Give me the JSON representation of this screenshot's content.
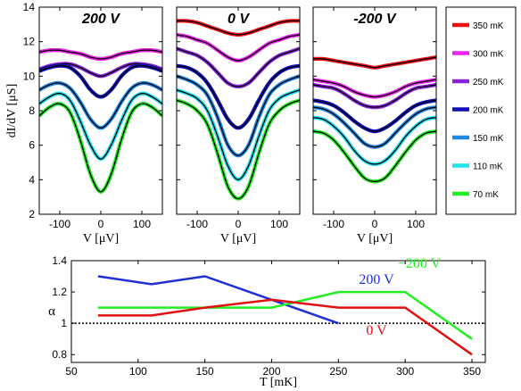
{
  "chart_data": [
    {
      "type": "line",
      "title": "200 V",
      "xlabel": "V [μV]",
      "ylabel": "dI/dV [μS]",
      "xlim": [
        -150,
        150
      ],
      "ylim": [
        2,
        14
      ],
      "xticks": [
        -100,
        0,
        100
      ],
      "yticks": [
        2,
        4,
        6,
        8,
        10,
        12,
        14
      ],
      "x": [
        -150,
        -125,
        -100,
        -75,
        -50,
        -25,
        0,
        25,
        50,
        75,
        100,
        125,
        150
      ],
      "series": [
        {
          "name": "350 mK",
          "values": [
            11.4,
            11.5,
            11.5,
            11.4,
            11.3,
            11.1,
            11.0,
            11.1,
            11.3,
            11.4,
            11.5,
            11.5,
            11.4
          ]
        },
        {
          "name": "300 mK",
          "values": [
            11.4,
            11.5,
            11.5,
            11.4,
            11.3,
            11.1,
            11.0,
            11.1,
            11.3,
            11.4,
            11.5,
            11.5,
            11.4
          ]
        },
        {
          "name": "250 mK",
          "values": [
            10.4,
            10.6,
            10.7,
            10.7,
            10.5,
            10.2,
            10.0,
            10.2,
            10.5,
            10.7,
            10.7,
            10.6,
            10.4
          ]
        },
        {
          "name": "200 mK",
          "values": [
            10.3,
            10.5,
            10.6,
            10.5,
            10.0,
            9.2,
            8.8,
            9.2,
            10.0,
            10.5,
            10.6,
            10.5,
            10.3
          ]
        },
        {
          "name": "150 mK",
          "values": [
            9.2,
            9.5,
            9.6,
            9.3,
            8.5,
            7.5,
            7.0,
            7.5,
            8.5,
            9.3,
            9.6,
            9.5,
            9.2
          ]
        },
        {
          "name": "110 mK",
          "values": [
            8.4,
            8.8,
            9.0,
            8.6,
            7.4,
            6.0,
            5.2,
            6.0,
            7.4,
            8.6,
            9.0,
            8.8,
            8.4
          ]
        },
        {
          "name": "70 mK",
          "values": [
            7.7,
            8.2,
            8.4,
            7.9,
            6.3,
            4.3,
            3.3,
            4.3,
            6.3,
            7.9,
            8.4,
            8.2,
            7.7
          ]
        }
      ]
    },
    {
      "type": "line",
      "title": "0 V",
      "xlabel": "V [μV]",
      "ylabel": "",
      "xlim": [
        -150,
        150
      ],
      "ylim": [
        2,
        14
      ],
      "xticks": [
        -100,
        0,
        100
      ],
      "yticks": [
        2,
        4,
        6,
        8,
        10,
        12,
        14
      ],
      "x": [
        -150,
        -125,
        -100,
        -75,
        -50,
        -25,
        0,
        25,
        50,
        75,
        100,
        125,
        150
      ],
      "series": [
        {
          "name": "350 mK",
          "values": [
            13.2,
            13.2,
            13.1,
            12.9,
            12.7,
            12.5,
            12.4,
            12.5,
            12.7,
            12.9,
            13.1,
            13.2,
            13.2
          ]
        },
        {
          "name": "300 mK",
          "values": [
            12.4,
            12.3,
            12.1,
            11.9,
            11.5,
            11.1,
            10.9,
            11.1,
            11.5,
            11.9,
            12.1,
            12.3,
            12.4
          ]
        },
        {
          "name": "250 mK",
          "values": [
            11.6,
            11.4,
            11.2,
            10.8,
            10.2,
            9.6,
            9.4,
            9.6,
            10.2,
            10.8,
            11.2,
            11.4,
            11.6
          ]
        },
        {
          "name": "200 mK",
          "values": [
            10.6,
            10.5,
            10.2,
            9.6,
            8.6,
            7.5,
            7.0,
            7.5,
            8.6,
            9.6,
            10.2,
            10.5,
            10.6
          ]
        },
        {
          "name": "150 mK",
          "values": [
            10.0,
            9.8,
            9.5,
            8.9,
            7.6,
            6.0,
            5.4,
            6.0,
            7.6,
            8.9,
            9.5,
            9.8,
            10.0
          ]
        },
        {
          "name": "110 mK",
          "values": [
            9.2,
            9.0,
            8.7,
            8.0,
            6.5,
            4.8,
            4.0,
            4.8,
            6.5,
            8.0,
            8.7,
            9.0,
            9.2
          ]
        },
        {
          "name": "70 mK",
          "values": [
            8.6,
            8.4,
            8.0,
            7.2,
            5.5,
            3.6,
            2.9,
            3.6,
            5.5,
            7.2,
            8.0,
            8.4,
            8.6
          ]
        }
      ]
    },
    {
      "type": "line",
      "title": "-200 V",
      "xlabel": "V [μV]",
      "ylabel": "",
      "xlim": [
        -150,
        150
      ],
      "ylim": [
        2,
        14
      ],
      "xticks": [
        -100,
        0,
        100
      ],
      "yticks": [
        2,
        4,
        6,
        8,
        10,
        12,
        14
      ],
      "x": [
        -150,
        -125,
        -100,
        -75,
        -50,
        -25,
        0,
        25,
        50,
        75,
        100,
        125,
        150
      ],
      "series": [
        {
          "name": "350 mK",
          "values": [
            11.0,
            11.0,
            10.9,
            10.8,
            10.7,
            10.6,
            10.5,
            10.6,
            10.7,
            10.8,
            10.9,
            11.0,
            11.1
          ]
        },
        {
          "name": "300 mK",
          "values": [
            9.8,
            9.7,
            9.6,
            9.4,
            9.1,
            8.9,
            8.8,
            8.9,
            9.1,
            9.4,
            9.6,
            9.7,
            9.8
          ]
        },
        {
          "name": "250 mK",
          "values": [
            9.5,
            9.4,
            9.3,
            9.0,
            8.6,
            8.3,
            8.2,
            8.3,
            8.6,
            9.0,
            9.3,
            9.4,
            9.5
          ]
        },
        {
          "name": "200 mK",
          "values": [
            8.6,
            8.5,
            8.3,
            7.9,
            7.4,
            7.0,
            6.8,
            7.0,
            7.4,
            7.9,
            8.3,
            8.5,
            8.6
          ]
        },
        {
          "name": "150 mK",
          "values": [
            8.2,
            8.1,
            7.8,
            7.3,
            6.7,
            6.1,
            5.9,
            6.1,
            6.7,
            7.3,
            7.8,
            8.1,
            8.2
          ]
        },
        {
          "name": "110 mK",
          "values": [
            7.6,
            7.5,
            7.1,
            6.5,
            5.7,
            5.1,
            4.9,
            5.1,
            5.7,
            6.5,
            7.1,
            7.5,
            7.6
          ]
        },
        {
          "name": "70 mK",
          "values": [
            6.8,
            6.7,
            6.3,
            5.6,
            4.8,
            4.1,
            3.9,
            4.1,
            4.8,
            5.6,
            6.3,
            6.7,
            6.8
          ]
        }
      ]
    },
    {
      "type": "line",
      "title": "",
      "xlabel": "T [mK]",
      "ylabel": "α",
      "xlim": [
        50,
        360
      ],
      "ylim": [
        0.75,
        1.4
      ],
      "xticks": [
        50,
        100,
        150,
        200,
        250,
        300,
        350
      ],
      "yticks": [
        0.8,
        1.0,
        1.2,
        1.4
      ],
      "reference_line": 1.0,
      "series": [
        {
          "name": "200 V",
          "x": [
            70,
            110,
            150,
            200,
            250
          ],
          "values": [
            1.3,
            1.25,
            1.3,
            1.15,
            1.0
          ]
        },
        {
          "name": "−200 V",
          "x": [
            70,
            110,
            150,
            200,
            250,
            300,
            350
          ],
          "values": [
            1.1,
            1.1,
            1.1,
            1.1,
            1.2,
            1.2,
            0.9
          ]
        },
        {
          "name": "0 V",
          "x": [
            70,
            110,
            150,
            200,
            250,
            300,
            350
          ],
          "values": [
            1.05,
            1.05,
            1.1,
            1.15,
            1.1,
            1.1,
            0.8
          ]
        }
      ]
    }
  ],
  "legend": [
    {
      "label": "350 mK",
      "color": "#ee1111"
    },
    {
      "label": "300 mK",
      "color": "#ee22ee"
    },
    {
      "label": "250 mK",
      "color": "#8822dd"
    },
    {
      "label": "200 mK",
      "color": "#1111bb"
    },
    {
      "label": "150 mK",
      "color": "#1e88e5"
    },
    {
      "label": "110 mK",
      "color": "#22e0ee"
    },
    {
      "label": "70 mK",
      "color": "#22ee22"
    }
  ],
  "bottom_colors": {
    "200 V": "#1f2fd6",
    "−200 V": "#22ee22",
    "0 V": "#e01010"
  }
}
